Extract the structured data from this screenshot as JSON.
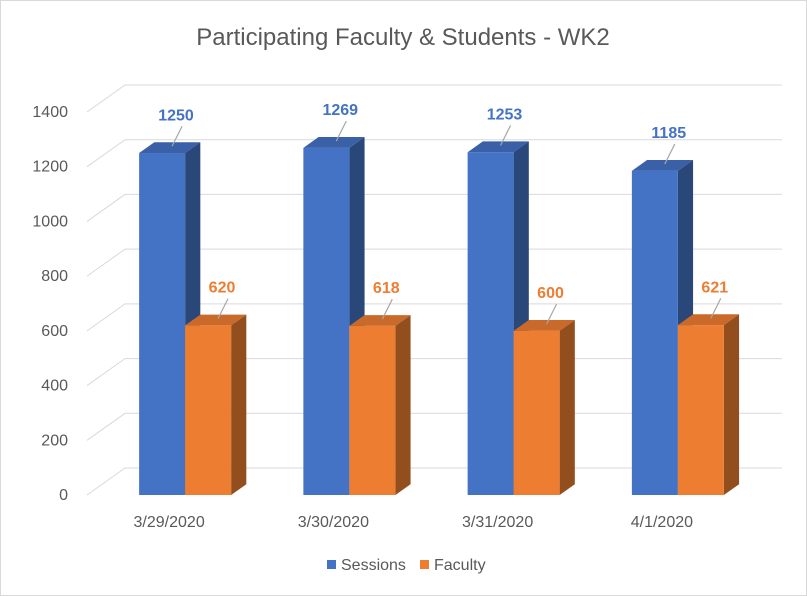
{
  "chart_data": {
    "type": "bar",
    "title": "Participating  Faculty & Students  - WK2",
    "categories": [
      "3/29/2020",
      "3/30/2020",
      "3/31/2020",
      "4/1/2020"
    ],
    "series": [
      {
        "name": "Sessions",
        "values": [
          1250,
          1269,
          1253,
          1185
        ],
        "color": "#4472c4",
        "label_color": "#4472c4"
      },
      {
        "name": "Faculty",
        "values": [
          620,
          618,
          600,
          621
        ],
        "color": "#ed7d31",
        "label_color": "#ed7d31"
      }
    ],
    "ylim": [
      0,
      1400
    ],
    "yticks": [
      0,
      200,
      400,
      600,
      800,
      1000,
      1200,
      1400
    ],
    "grid": true,
    "legend": "bottom",
    "style": "3d-clustered-column"
  }
}
